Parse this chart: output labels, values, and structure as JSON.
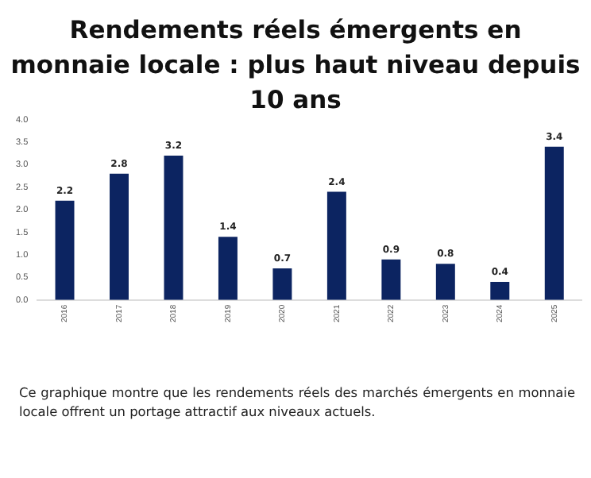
{
  "chart_data": {
    "type": "bar",
    "title": "Rendements réels émergents en monnaie locale : plus haut niveau depuis 10 ans",
    "categories": [
      "2016",
      "2017",
      "2018",
      "2019",
      "2020",
      "2021",
      "2022",
      "2023",
      "2024",
      "2025"
    ],
    "values": [
      2.2,
      2.8,
      3.2,
      1.4,
      0.7,
      2.4,
      0.9,
      0.8,
      0.4,
      3.4
    ],
    "color": "#0c2461",
    "ylim": [
      0,
      4
    ],
    "yticks": [
      {
        "value": 0,
        "label": "0.0"
      },
      {
        "value": 0.5,
        "label": "0.5"
      },
      {
        "value": 1,
        "label": "1.0"
      },
      {
        "value": 1.5,
        "label": "1.5"
      },
      {
        "value": 2,
        "label": "2.0"
      },
      {
        "value": 2.5,
        "label": "2.5"
      },
      {
        "value": 3,
        "label": "3.0"
      },
      {
        "value": 3.5,
        "label": "3.5"
      },
      {
        "value": 4,
        "label": "4.0"
      }
    ],
    "grid": false,
    "data_labels": true,
    "annotations": [
      "Ce graphique montre que les rendements réels des marchés émergents en monnaie locale offrent un portage attractif aux niveaux actuels."
    ]
  }
}
